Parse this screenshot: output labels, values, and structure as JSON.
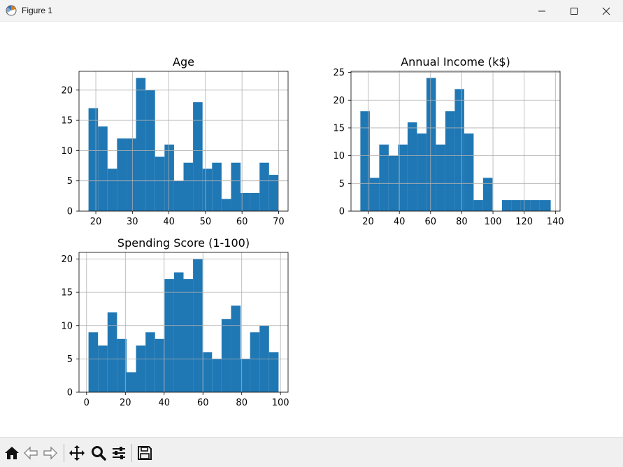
{
  "window": {
    "title": "Figure 1",
    "icon": "matplotlib-figure-icon",
    "controls": [
      "minimize-icon",
      "maximize-icon",
      "close-icon"
    ]
  },
  "toolbar": {
    "buttons": [
      {
        "name": "home-button",
        "icon": "home-icon"
      },
      {
        "name": "back-button",
        "icon": "back-arrow-icon"
      },
      {
        "name": "forward-button",
        "icon": "forward-arrow-icon"
      },
      {
        "name": "pan-button",
        "icon": "move-icon"
      },
      {
        "name": "zoom-button",
        "icon": "zoom-icon"
      },
      {
        "name": "configure-subplots-button",
        "icon": "sliders-icon"
      },
      {
        "name": "save-button",
        "icon": "save-icon"
      }
    ]
  },
  "chart_data": [
    {
      "type": "bar",
      "title": "Age",
      "bar_color": "#1f77b4",
      "grid": true,
      "bin_edges": [
        18,
        20.6,
        23.2,
        25.8,
        28.4,
        31,
        33.6,
        36.2,
        38.8,
        41.4,
        44,
        46.6,
        49.2,
        51.8,
        54.4,
        57,
        59.6,
        62.2,
        64.8,
        67.4,
        70
      ],
      "values": [
        17,
        14,
        7,
        12,
        12,
        22,
        20,
        9,
        11,
        5,
        8,
        18,
        7,
        8,
        2,
        8,
        3,
        3,
        8,
        6
      ],
      "xlim": [
        15.4,
        72.6
      ],
      "ylim": [
        0,
        23.1
      ],
      "xticks": [
        20,
        30,
        40,
        50,
        60,
        70
      ],
      "yticks": [
        0,
        5,
        10,
        15,
        20
      ]
    },
    {
      "type": "bar",
      "title": "Annual Income (k$)",
      "bar_color": "#1f77b4",
      "grid": true,
      "bin_edges": [
        15,
        21.05,
        27.1,
        33.15,
        39.2,
        45.25,
        51.3,
        57.35,
        63.4,
        69.45,
        75.5,
        81.55,
        87.6,
        93.65,
        99.7,
        105.75,
        111.8,
        117.85,
        123.9,
        129.95,
        137
      ],
      "values": [
        18,
        6,
        12,
        10,
        12,
        16,
        14,
        24,
        12,
        18,
        22,
        14,
        2,
        6,
        0,
        2,
        2,
        2,
        2,
        2
      ],
      "xlim": [
        9,
        143
      ],
      "ylim": [
        0,
        25.2
      ],
      "xticks": [
        20,
        40,
        60,
        80,
        100,
        120,
        140
      ],
      "yticks": [
        0,
        5,
        10,
        15,
        20,
        25
      ]
    },
    {
      "type": "bar",
      "title": "Spending Score (1-100)",
      "bar_color": "#1f77b4",
      "grid": true,
      "bin_edges": [
        1,
        5.9,
        10.8,
        15.7,
        20.6,
        25.5,
        30.4,
        35.3,
        40.2,
        45.1,
        50,
        54.9,
        59.8,
        64.7,
        69.6,
        74.5,
        79.4,
        84.3,
        89.2,
        94.1,
        99
      ],
      "values": [
        9,
        7,
        12,
        8,
        3,
        7,
        9,
        8,
        17,
        18,
        17,
        20,
        6,
        5,
        11,
        13,
        5,
        9,
        10,
        6
      ],
      "xlim": [
        -3.9,
        103.9
      ],
      "ylim": [
        0,
        21
      ],
      "xticks": [
        0,
        20,
        40,
        60,
        80,
        100
      ],
      "yticks": [
        0,
        5,
        10,
        15,
        20
      ]
    }
  ]
}
